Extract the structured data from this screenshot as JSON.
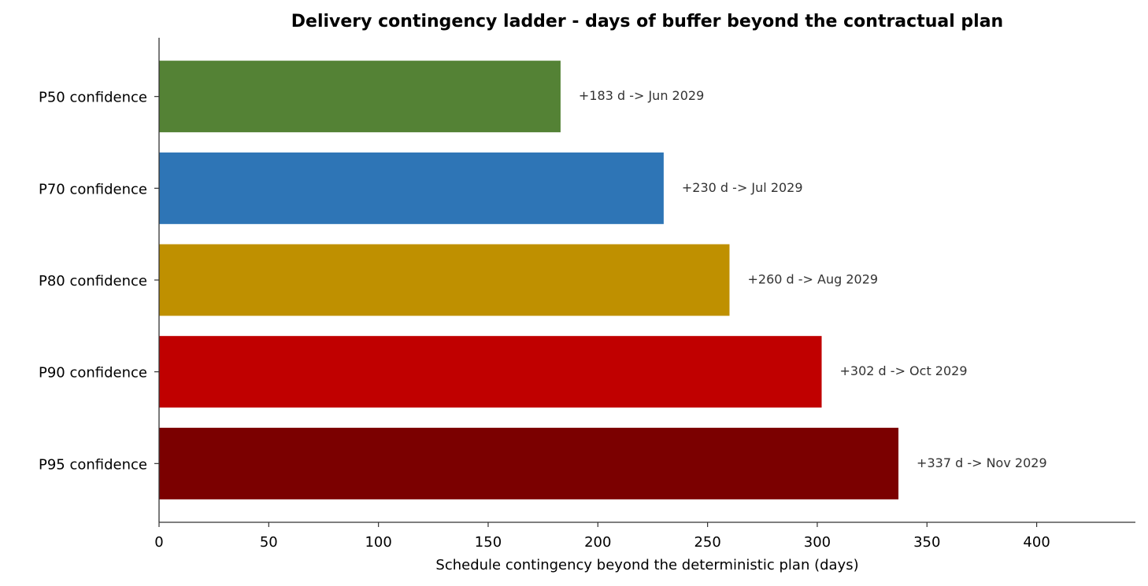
{
  "chart_data": {
    "type": "hbar",
    "title": "Delivery contingency ladder - days of buffer beyond the contractual plan",
    "x_label": "Schedule contingency beyond the deterministic plan  (days)",
    "categories": [
      "P50 confidence",
      "P70 confidence",
      "P80 confidence",
      "P90 confidence",
      "P95 confidence"
    ],
    "values": [
      183,
      230,
      260,
      302,
      337
    ],
    "value_labels": [
      "+183 d  ->  Jun 2029",
      "+230 d  ->  Jul 2029",
      "+260 d  ->  Aug 2029",
      "+302 d  ->  Oct 2029",
      "+337 d  ->  Nov 2029"
    ],
    "colors": [
      "#548235",
      "#2e75b6",
      "#bf9000",
      "#c00000",
      "#7b0000"
    ],
    "xlim": [
      0,
      445
    ],
    "xticks": [
      0,
      50,
      100,
      150,
      200,
      250,
      300,
      350,
      400
    ],
    "grid": false
  }
}
